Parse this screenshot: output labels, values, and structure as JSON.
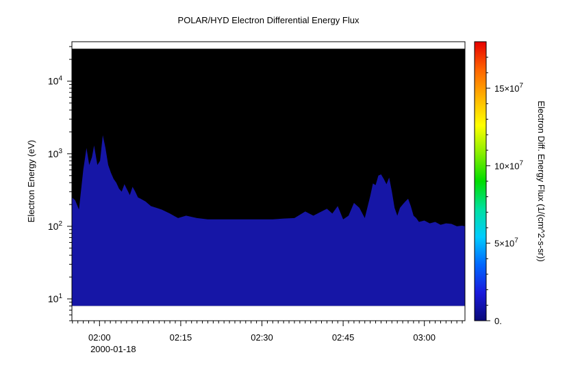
{
  "chart_data": {
    "type": "heatmap",
    "title": "POLAR/HYD  Electron Differential Energy Flux",
    "ylabel": "Electron Energy (eV)",
    "y_scale": "log",
    "ylim": [
      5,
      35000
    ],
    "y_ticks": [
      {
        "value": 10,
        "base": "10",
        "exp": "1"
      },
      {
        "value": 100,
        "base": "10",
        "exp": "2"
      },
      {
        "value": 1000,
        "base": "10",
        "exp": "3"
      },
      {
        "value": 10000,
        "base": "10",
        "exp": "4"
      }
    ],
    "x_range_minutes": [
      1.9,
      74.5
    ],
    "x_ticks": [
      {
        "minute": 7,
        "label": "02:00"
      },
      {
        "minute": 22,
        "label": "02:15"
      },
      {
        "minute": 37,
        "label": "02:30"
      },
      {
        "minute": 52,
        "label": "02:45"
      },
      {
        "minute": 67,
        "label": "03:00"
      }
    ],
    "x_date_label": "2000-01-18",
    "x_minute_reference": "01:53",
    "data_energy_range_eV": [
      8,
      28000
    ],
    "colorbar": {
      "label": "Electron Diff. Energy Flux (1/(cm^2-s-sr))",
      "range": [
        0,
        180000000
      ],
      "ticks": [
        {
          "value": 0,
          "label": "0.",
          "mant": "",
          "exp": ""
        },
        {
          "value": 50000000,
          "label": "",
          "mant": "5×10",
          "exp": "7"
        },
        {
          "value": 100000000,
          "label": "",
          "mant": "10×10",
          "exp": "7"
        },
        {
          "value": 150000000,
          "label": "",
          "mant": "15×10",
          "exp": "7"
        }
      ],
      "colors": [
        "#0a0a78",
        "#1a1adc",
        "#0066ff",
        "#00ccff",
        "#00e0a0",
        "#00dd00",
        "#88ee00",
        "#ffff00",
        "#ffb400",
        "#ff6400",
        "#e60000"
      ]
    },
    "background_fill_color": "#000000",
    "flux_fill_color": "#1616a6",
    "flux_boundary_profile": {
      "minutes": [
        1.9,
        2.5,
        3.2,
        4.0,
        4.6,
        5.1,
        5.6,
        6.0,
        6.6,
        7.1,
        7.6,
        8.1,
        8.6,
        9.1,
        9.6,
        10.1,
        10.6,
        11.1,
        11.6,
        12.1,
        12.6,
        13.1,
        13.6,
        14.1,
        14.6,
        15.5,
        16.5,
        17.5,
        18.5,
        20.0,
        21.5,
        23.0,
        25.0,
        27.0,
        29.0,
        31.0,
        33.0,
        35.0,
        37.0,
        39.0,
        41.0,
        43.0,
        45.0,
        46.5,
        48.0,
        49.0,
        50.0,
        51.0,
        52.0,
        53.0,
        54.0,
        55.0,
        56.0,
        57.0,
        57.5,
        58.0,
        58.5,
        59.0,
        59.5,
        60.0,
        60.5,
        61.0,
        61.5,
        62.0,
        62.5,
        63.0,
        63.5,
        64.0,
        64.5,
        65.0,
        65.5,
        66.0,
        67.0,
        68.0,
        69.0,
        70.0,
        71.0,
        72.0,
        73.0,
        74.0,
        74.5
      ],
      "energy_eV": [
        250,
        230,
        170,
        600,
        1200,
        700,
        900,
        1300,
        700,
        800,
        1800,
        1200,
        700,
        550,
        450,
        400,
        330,
        300,
        380,
        320,
        270,
        350,
        300,
        250,
        240,
        220,
        190,
        180,
        170,
        150,
        130,
        140,
        130,
        125,
        125,
        125,
        125,
        125,
        125,
        125,
        128,
        130,
        160,
        140,
        160,
        175,
        150,
        190,
        125,
        140,
        210,
        180,
        130,
        260,
        390,
        370,
        500,
        520,
        450,
        380,
        470,
        300,
        180,
        140,
        180,
        200,
        220,
        240,
        190,
        140,
        130,
        115,
        120,
        110,
        115,
        105,
        110,
        108,
        100,
        102,
        100
      ]
    }
  }
}
